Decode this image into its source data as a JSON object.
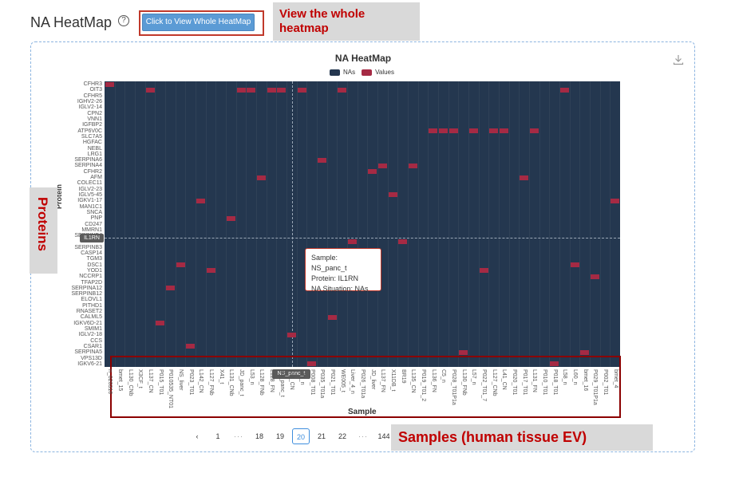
{
  "page": {
    "title": "NA HeatMap",
    "help": "?"
  },
  "toolbar": {
    "view_button": "Click to View Whole HeatMap"
  },
  "annotations": {
    "view": "View the whole heatmap",
    "proteins": "Proteins",
    "samples": "Samples (human tissue EV)"
  },
  "chart_data": {
    "type": "heatmap",
    "title": "NA HeatMap",
    "xlabel": "Sample",
    "ylabel": "Protein",
    "legend": {
      "position": "top-center",
      "entries": [
        {
          "name": "NAs",
          "color": "#24374f"
        },
        {
          "name": "Values",
          "color": "#a52a44"
        }
      ]
    },
    "proteins": [
      "CFHR3",
      "OIT3",
      "CFHR5",
      "IGHV2-26",
      "IGLV2-14",
      "CPN2",
      "VNN1",
      "IGFBP2",
      "ATP6V0C",
      "SLC7A5",
      "HGFAC",
      "NEBL",
      "LRG1",
      "SERPINA6",
      "SERPINA4",
      "CFHR2",
      "AFM",
      "COLEC11",
      "IGLV2-23",
      "IGLV5-45",
      "IGKV1-17",
      "MAN1C1",
      "SNCA",
      "PNP",
      "CD247",
      "MMRN1",
      "SERPINB4",
      "IL1RN",
      "SERPINB3",
      "CASP14",
      "TGM3",
      "DSC1",
      "YOD1",
      "NCCRP1",
      "TFAP2D",
      "SERPINA12",
      "SERPINB12",
      "ELOVL1",
      "PITHD1",
      "RNASET2",
      "CALML5",
      "IGKV6D-21",
      "SMIM1",
      "IGLV2-18",
      "CCS",
      "CSAR1",
      "SERPINA5",
      "VPS13D",
      "IGKV6-21"
    ],
    "samples": [
      "n_020316",
      "bmet_15",
      "L130_CNb",
      "X3CF_t",
      "L137_CN",
      "P015_T01",
      "P010535_NT01",
      "NS_liver",
      "P023_T01",
      "L142_CN",
      "L127_FNb",
      "X41_t",
      "L131_CNb",
      "JD_panc_t",
      "L53_n",
      "L128_FNb",
      "L128_FN",
      "NS_panc_t",
      "L53_CN",
      "L67_n",
      "P008_T01",
      "P035_T01a",
      "P021_T01",
      "WE005_t",
      "Liver_4_n",
      "P026_T01a",
      "JD_liver",
      "L137_FN",
      "X11DB_t",
      "BR19",
      "L135_CN",
      "P019_T01_2",
      "L136_FN",
      "C5_n",
      "P028_T01P1a",
      "L130_FNb",
      "L57_n",
      "P022_T01_7",
      "L127_CNb",
      "L41_CN",
      "P020_T01",
      "P017_T01",
      "L131_FN",
      "P010_T01",
      "P018_T01",
      "L58_n",
      "L60_n",
      "bmet_16",
      "P029_T01P1a",
      "P002_T01",
      "bmet_4"
    ],
    "crosshair": {
      "protein": "IL1RN",
      "sample": "NS_panc_t"
    },
    "values_cells": [
      [
        0,
        0
      ],
      [
        4,
        1
      ],
      [
        2,
        51
      ],
      [
        3,
        49
      ],
      [
        5,
        41
      ],
      [
        6,
        35
      ],
      [
        7,
        31
      ],
      [
        8,
        45
      ],
      [
        9,
        20
      ],
      [
        10,
        32
      ],
      [
        11,
        53
      ],
      [
        12,
        23
      ],
      [
        13,
        1
      ],
      [
        14,
        1
      ],
      [
        15,
        16
      ],
      [
        16,
        1
      ],
      [
        17,
        1
      ],
      [
        18,
        43
      ],
      [
        19,
        1
      ],
      [
        20,
        48
      ],
      [
        21,
        13
      ],
      [
        22,
        40
      ],
      [
        23,
        1
      ],
      [
        24,
        27
      ],
      [
        25,
        49
      ],
      [
        26,
        15
      ],
      [
        27,
        14
      ],
      [
        28,
        19
      ],
      [
        29,
        27
      ],
      [
        30,
        14
      ],
      [
        32,
        8
      ],
      [
        33,
        8
      ],
      [
        34,
        8
      ],
      [
        35,
        46
      ],
      [
        36,
        8
      ],
      [
        37,
        32
      ],
      [
        38,
        8
      ],
      [
        39,
        8
      ],
      [
        40,
        53
      ],
      [
        41,
        16
      ],
      [
        42,
        8
      ],
      [
        43,
        53
      ],
      [
        44,
        48
      ],
      [
        45,
        1
      ],
      [
        46,
        31
      ],
      [
        47,
        46
      ],
      [
        48,
        33
      ],
      [
        49,
        49
      ],
      [
        50,
        20
      ],
      [
        51,
        1
      ]
    ]
  },
  "tooltip": {
    "sample": "Sample: NS_panc_t",
    "protein": "Protein: IL1RN",
    "situation": "NA Situation: NAs"
  },
  "pagination": {
    "prev": "‹",
    "pages": [
      "1",
      "···",
      "18",
      "19",
      "20",
      "21",
      "22",
      "···",
      "144"
    ],
    "active": "20"
  },
  "colors": {
    "nas": "#24374f",
    "values": "#a52a44",
    "accent": "#3e8ede",
    "annotation_text": "#c00000"
  }
}
